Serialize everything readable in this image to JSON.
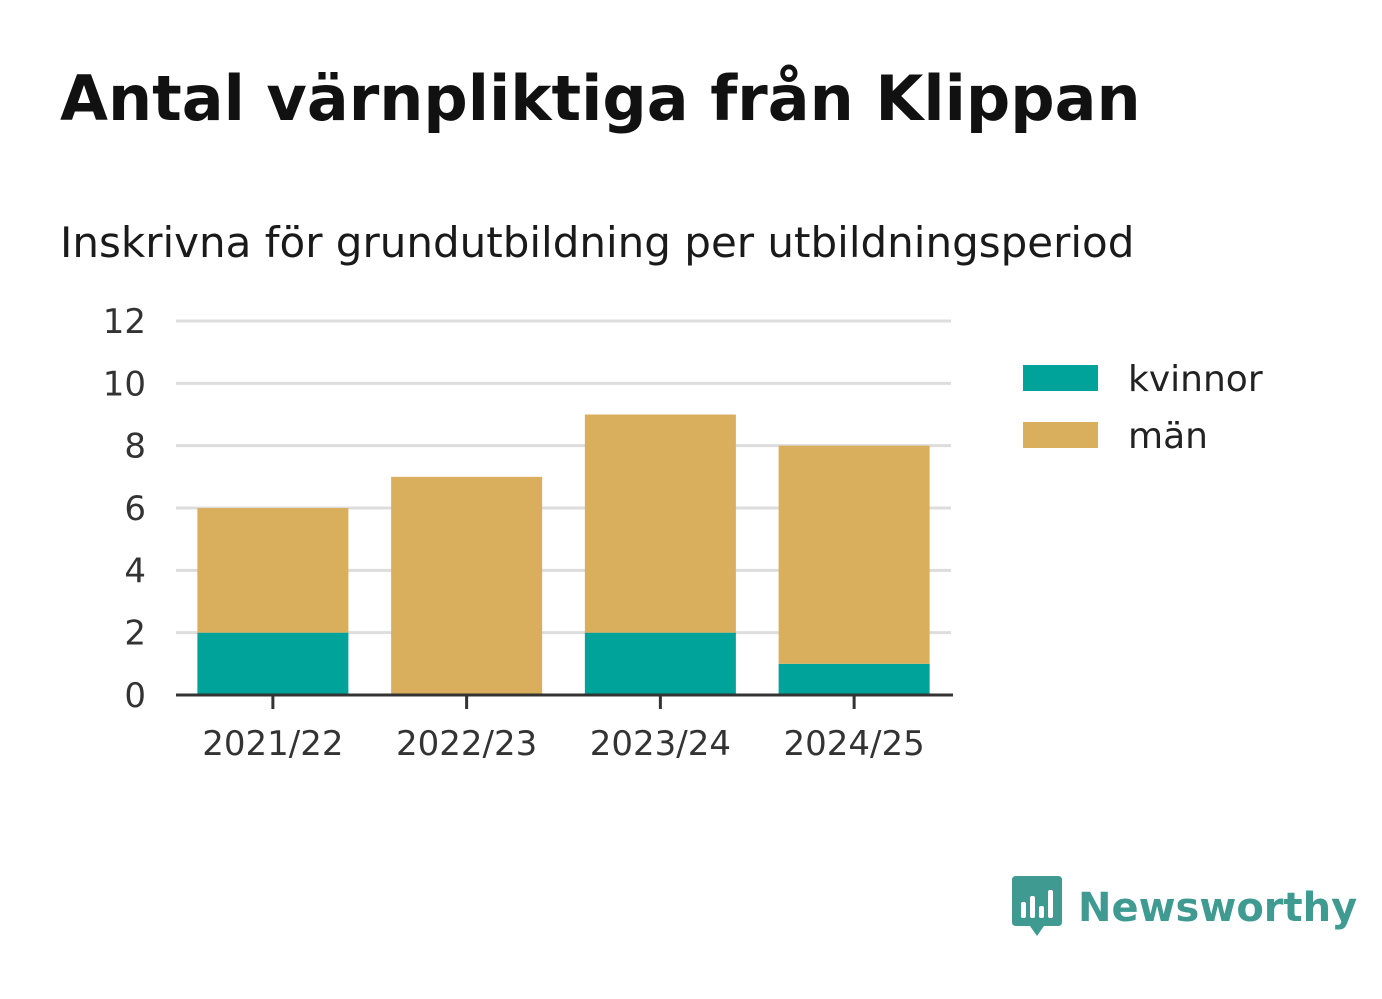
{
  "chart_data": {
    "type": "bar",
    "stacked": true,
    "title": "Antal värnpliktiga från Klippan",
    "subtitle": "Inskrivna för grundutbildning per utbildningsperiod",
    "categories": [
      "2021/22",
      "2022/23",
      "2023/24",
      "2024/25"
    ],
    "series": [
      {
        "name": "kvinnor",
        "values": [
          2,
          0,
          2,
          1
        ],
        "color": "#00a39a"
      },
      {
        "name": "män",
        "values": [
          4,
          7,
          7,
          7
        ],
        "color": "#d9ae5c"
      }
    ],
    "ylim": [
      0,
      12
    ],
    "yticks": [
      0,
      2,
      4,
      6,
      8,
      10,
      12
    ],
    "grid": true,
    "legend_position": "right"
  },
  "brand": {
    "name": "Newsworthy",
    "icon": "newsworthy-logo-icon",
    "color": "#3f9b91"
  }
}
